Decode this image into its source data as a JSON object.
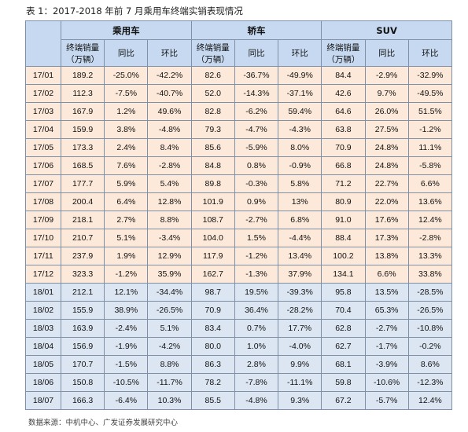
{
  "title": "表 1：2017-2018 年前 7 月乘用车终端实销表现情况",
  "table": {
    "groups": [
      "乘用车",
      "轿车",
      "SUV"
    ],
    "subheaders": [
      [
        "终端销量",
        "（万辆）"
      ],
      "同比",
      "环比",
      [
        "终端销量",
        "（万辆）"
      ],
      "同比",
      "环比",
      [
        "终端销量",
        "（万辆）"
      ],
      "同比",
      "环比"
    ],
    "rows": [
      [
        "17/01",
        "189.2",
        "-25.0%",
        "-42.2%",
        "82.6",
        "-36.7%",
        "-49.9%",
        "84.4",
        "-2.9%",
        "-32.9%"
      ],
      [
        "17/02",
        "112.3",
        "-7.5%",
        "-40.7%",
        "52.0",
        "-14.3%",
        "-37.1%",
        "42.6",
        "9.7%",
        "-49.5%"
      ],
      [
        "17/03",
        "167.9",
        "1.2%",
        "49.6%",
        "82.8",
        "-6.2%",
        "59.4%",
        "64.6",
        "26.0%",
        "51.5%"
      ],
      [
        "17/04",
        "159.9",
        "3.8%",
        "-4.8%",
        "79.3",
        "-4.7%",
        "-4.3%",
        "63.8",
        "27.5%",
        "-1.2%"
      ],
      [
        "17/05",
        "173.3",
        "2.4%",
        "8.4%",
        "85.6",
        "-5.9%",
        "8.0%",
        "70.9",
        "24.8%",
        "11.1%"
      ],
      [
        "17/06",
        "168.5",
        "7.6%",
        "-2.8%",
        "84.8",
        "0.8%",
        "-0.9%",
        "66.8",
        "24.8%",
        "-5.8%"
      ],
      [
        "17/07",
        "177.7",
        "5.9%",
        "5.4%",
        "89.8",
        "-0.3%",
        "5.8%",
        "71.2",
        "22.7%",
        "6.6%"
      ],
      [
        "17/08",
        "200.4",
        "6.4%",
        "12.8%",
        "101.9",
        "0.9%",
        "13%",
        "80.9",
        "22.0%",
        "13.6%"
      ],
      [
        "17/09",
        "218.1",
        "2.7%",
        "8.8%",
        "108.7",
        "-2.7%",
        "6.8%",
        "91.0",
        "17.6%",
        "12.4%"
      ],
      [
        "17/10",
        "210.7",
        "5.1%",
        "-3.4%",
        "104.0",
        "1.5%",
        "-4.4%",
        "88.4",
        "17.3%",
        "-2.8%"
      ],
      [
        "17/11",
        "237.9",
        "1.9%",
        "12.9%",
        "117.9",
        "-1.2%",
        "13.4%",
        "100.2",
        "13.8%",
        "13.3%"
      ],
      [
        "17/12",
        "323.3",
        "-1.2%",
        "35.9%",
        "162.7",
        "-1.3%",
        "37.9%",
        "134.1",
        "6.6%",
        "33.8%"
      ],
      [
        "18/01",
        "212.1",
        "12.1%",
        "-34.4%",
        "98.7",
        "19.5%",
        "-39.3%",
        "95.8",
        "13.5%",
        "-28.5%"
      ],
      [
        "18/02",
        "155.9",
        "38.9%",
        "-26.5%",
        "70.9",
        "36.4%",
        "-28.2%",
        "70.4",
        "65.3%",
        "-26.5%"
      ],
      [
        "18/03",
        "163.9",
        "-2.4%",
        "5.1%",
        "83.4",
        "0.7%",
        "17.7%",
        "62.8",
        "-2.7%",
        "-10.8%"
      ],
      [
        "18/04",
        "156.9",
        "-1.9%",
        "-4.2%",
        "80.0",
        "1.0%",
        "-4.0%",
        "62.7",
        "-1.7%",
        "-0.2%"
      ],
      [
        "18/05",
        "170.7",
        "-1.5%",
        "8.8%",
        "86.3",
        "2.8%",
        "9.9%",
        "68.1",
        "-3.9%",
        "8.6%"
      ],
      [
        "18/06",
        "150.8",
        "-10.5%",
        "-11.7%",
        "78.2",
        "-7.8%",
        "-11.1%",
        "59.8",
        "-10.6%",
        "-12.3%"
      ],
      [
        "18/07",
        "166.3",
        "-6.4%",
        "10.3%",
        "85.5",
        "-4.8%",
        "9.3%",
        "67.2",
        "-5.7%",
        "12.4%"
      ]
    ]
  },
  "source": "数据来源：中机中心、广发证券发展研究中心"
}
